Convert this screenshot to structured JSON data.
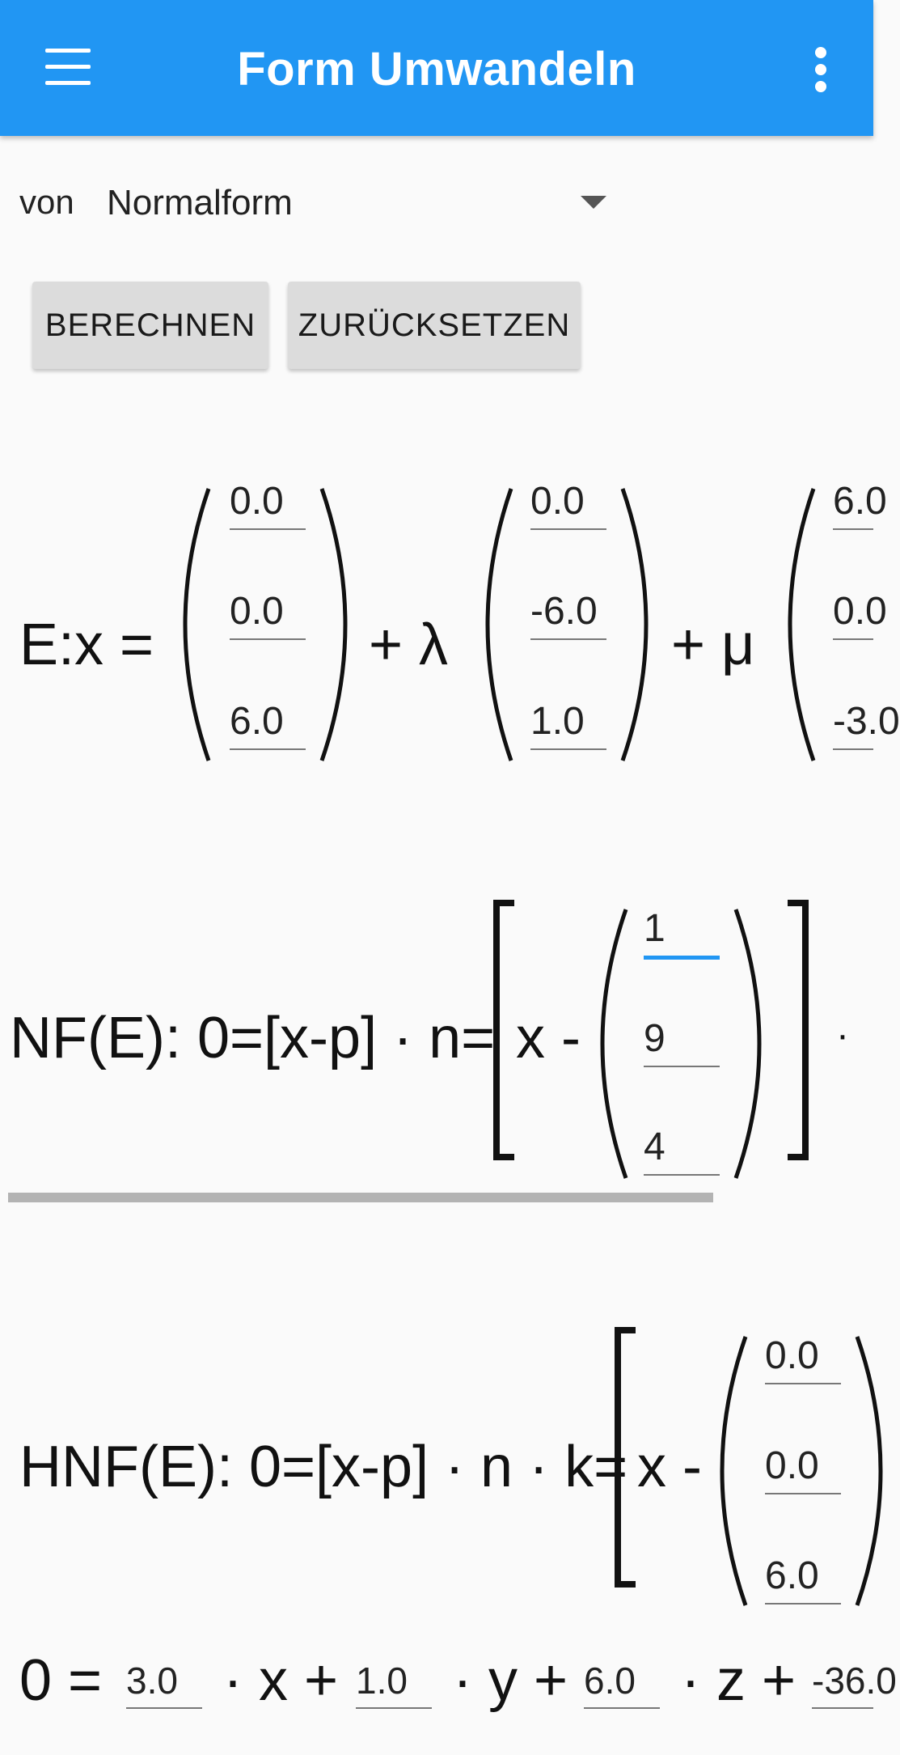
{
  "appbar": {
    "title": "Form Umwandeln",
    "menu_icon": "hamburger-menu-icon",
    "more_icon": "more-vert-icon"
  },
  "from": {
    "label": "von",
    "selected": "Normalform"
  },
  "buttons": {
    "calculate": "BERECHNEN",
    "reset": "ZURÜCKSETZEN"
  },
  "param_form": {
    "prefix": "E:x =",
    "plus_lambda": "+  λ",
    "plus_mu": "+  μ",
    "support": [
      "0.0",
      "0.0",
      "6.0"
    ],
    "direction1": [
      "0.0",
      "-6.0",
      "1.0"
    ],
    "direction2": [
      "6.0",
      "0.0",
      "-3.0"
    ]
  },
  "normal_form": {
    "prefix": "NF(E): 0=[x-p] · n=",
    "x_minus": "x -",
    "dot": "·",
    "point": [
      "1",
      "9",
      "4"
    ]
  },
  "hesse_form": {
    "prefix": "HNF(E): 0=[x-p] · n · k=",
    "x_minus": "x -",
    "point": [
      "0.0",
      "0.0",
      "6.0"
    ]
  },
  "coordinate_form": {
    "prefix": "0 =",
    "x_term": "· x +",
    "y_term": "· y +",
    "z_term": "· z +",
    "a": "3.0",
    "b": "1.0",
    "c": "6.0",
    "d": "-36.0"
  }
}
